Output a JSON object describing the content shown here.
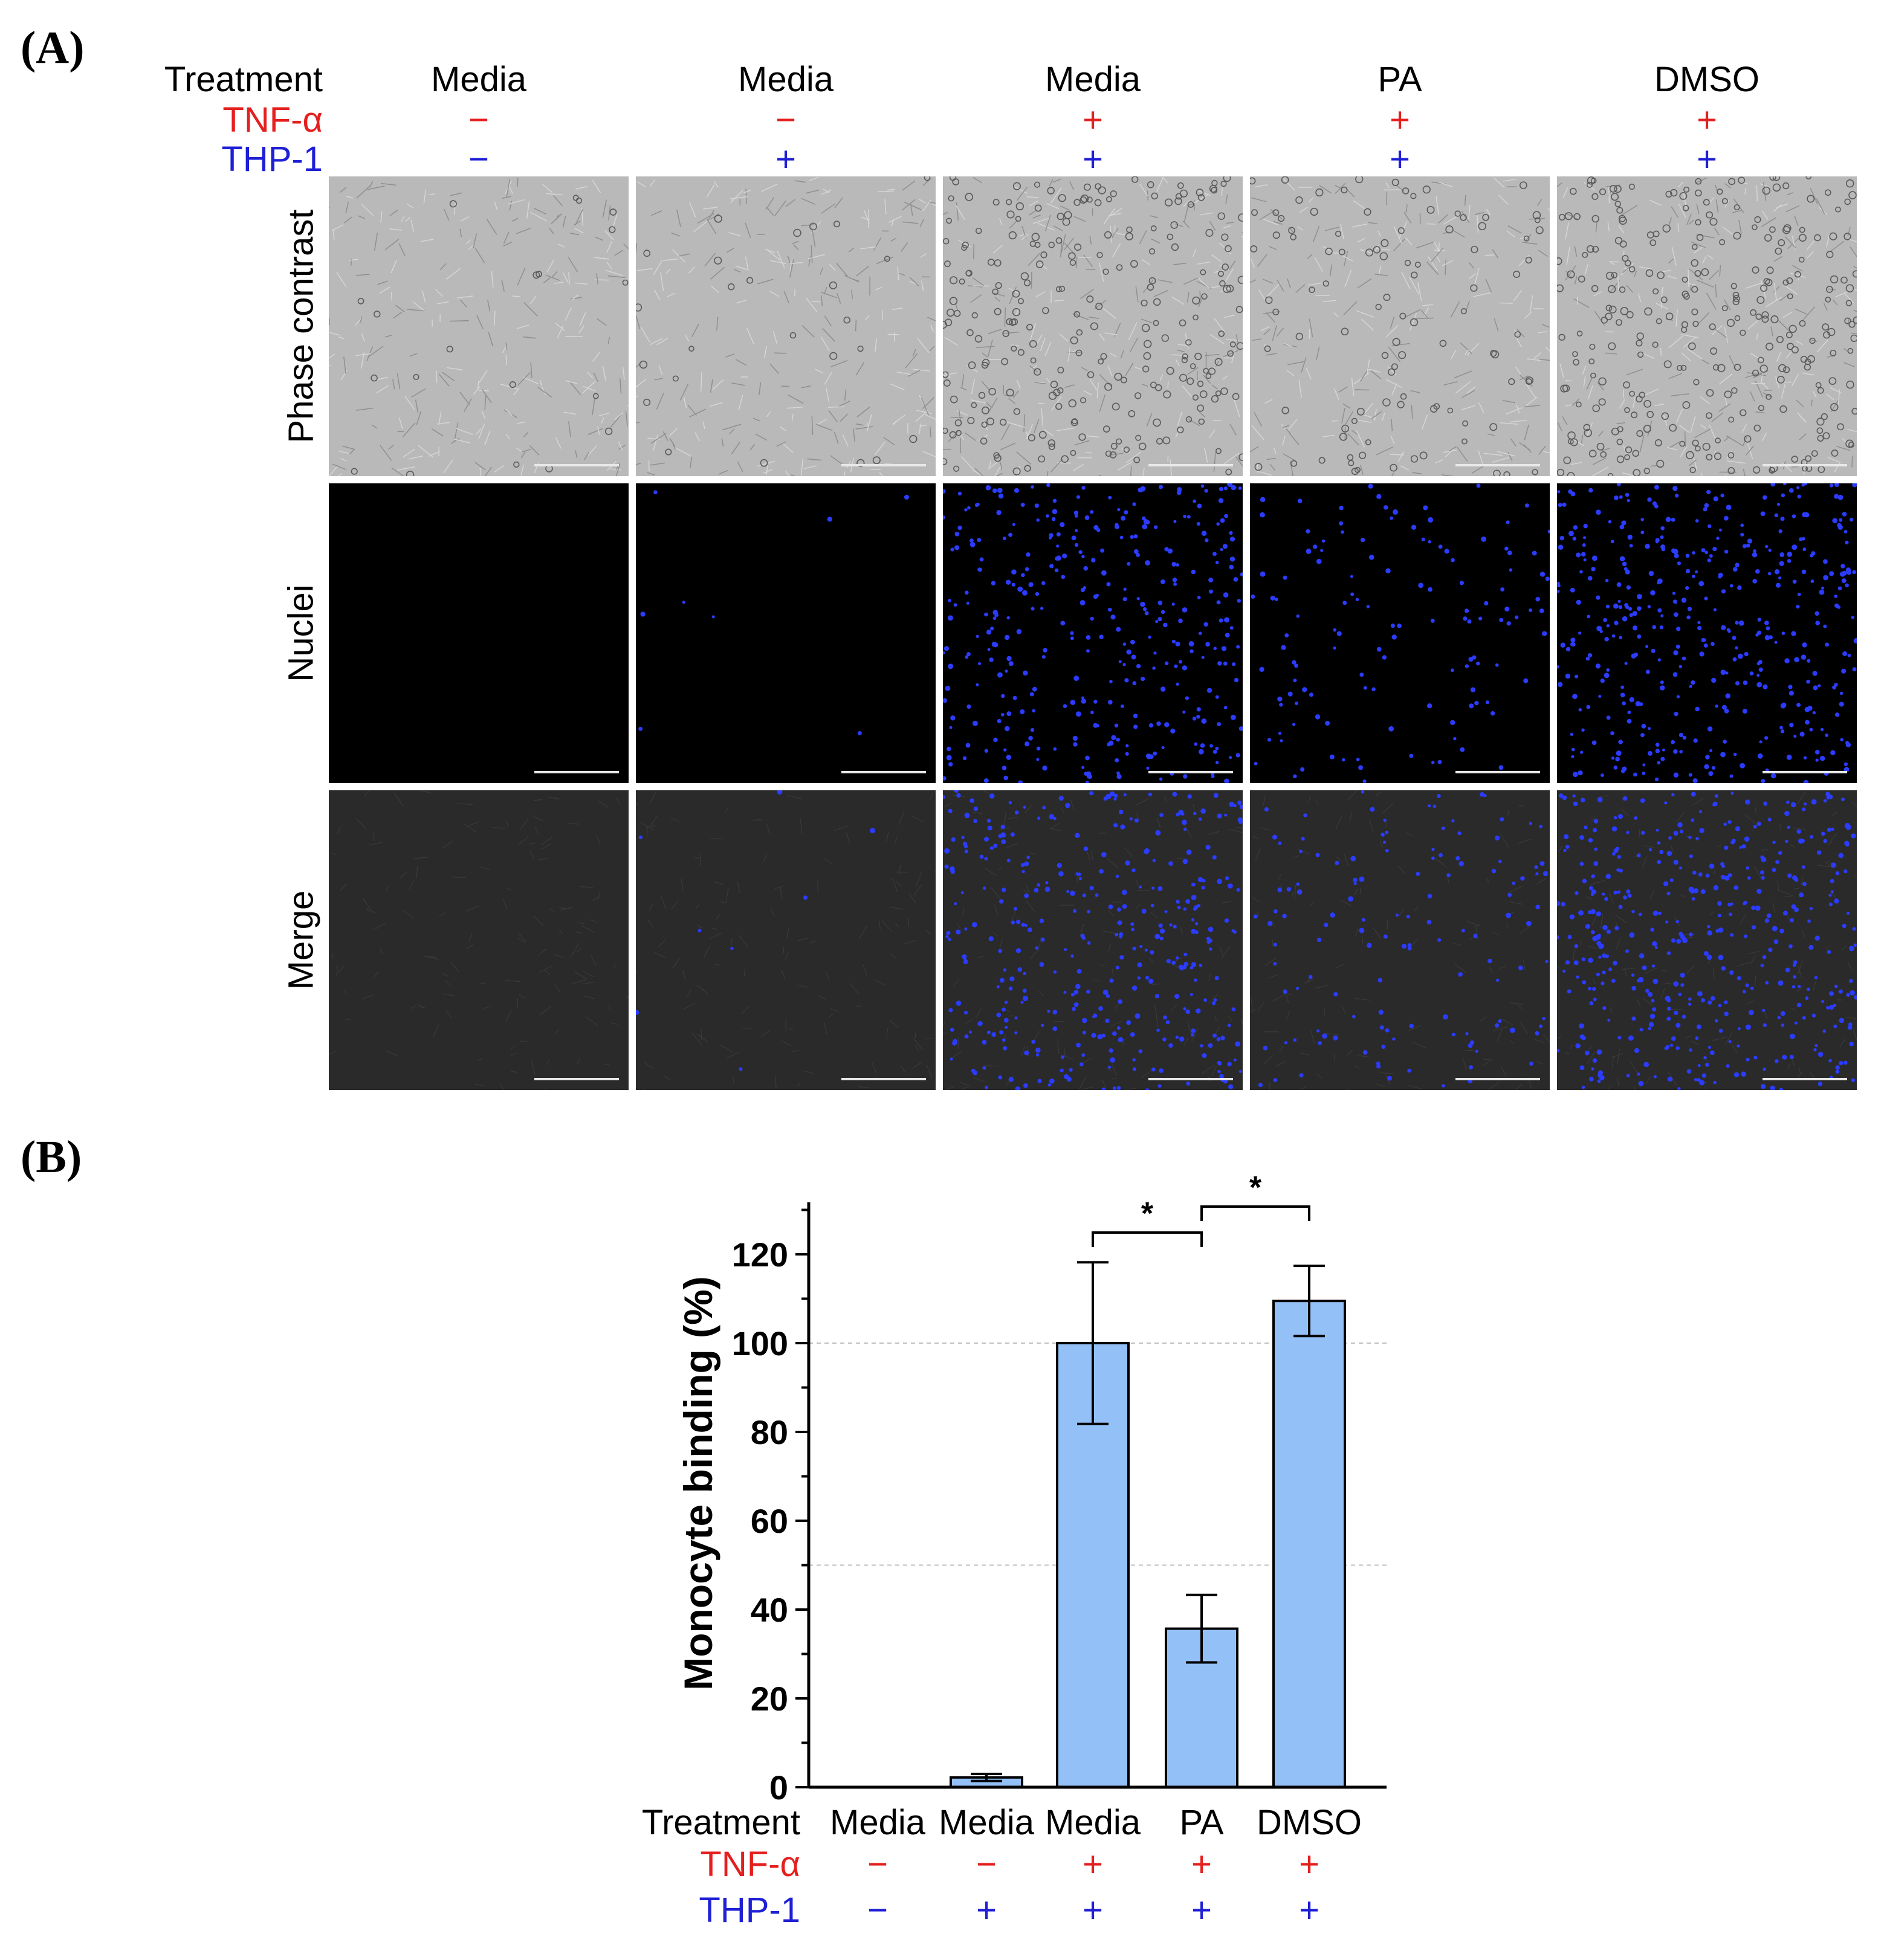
{
  "panel_a": {
    "letter": "(A)",
    "header_labels": {
      "treatment": "Treatment",
      "tnf": "TNF-α",
      "thp": "THP-1"
    },
    "columns": [
      {
        "treatment": "Media",
        "tnf": "−",
        "thp": "−"
      },
      {
        "treatment": "Media",
        "tnf": "−",
        "thp": "+"
      },
      {
        "treatment": "Media",
        "tnf": "+",
        "thp": "+"
      },
      {
        "treatment": "PA",
        "tnf": "+",
        "thp": "+"
      },
      {
        "treatment": "DMSO",
        "tnf": "+",
        "thp": "+"
      }
    ],
    "rows": [
      "Phase contrast",
      "Nuclei",
      "Merge"
    ],
    "nuclei_density": [
      0,
      0.02,
      0.85,
      0.3,
      1.0
    ]
  },
  "panel_b": {
    "letter": "(B)",
    "header_labels": {
      "treatment": "Treatment",
      "tnf": "TNF-α",
      "thp": "THP-1"
    },
    "columns": [
      {
        "treatment": "Media",
        "tnf": "−",
        "thp": "−"
      },
      {
        "treatment": "Media",
        "tnf": "−",
        "thp": "+"
      },
      {
        "treatment": "Media",
        "tnf": "+",
        "thp": "+"
      },
      {
        "treatment": "PA",
        "tnf": "+",
        "thp": "+"
      },
      {
        "treatment": "DMSO",
        "tnf": "+",
        "thp": "+"
      }
    ]
  },
  "colors": {
    "bar_fill": "#93c0f6",
    "tnf_label": "#e4201f",
    "thp_label": "#1f1fd6",
    "nuclei": "#2b3cff"
  },
  "chart_data": {
    "type": "bar",
    "categories": [
      "Media",
      "Media",
      "Media",
      "PA",
      "DMSO"
    ],
    "values": [
      0,
      2.2,
      100,
      35.7,
      109.5
    ],
    "errors": [
      0,
      0.8,
      18.2,
      7.6,
      7.9
    ],
    "ylabel": "Monocyte binding (%)",
    "ylim": [
      0,
      130
    ],
    "yticks": [
      0,
      20,
      40,
      60,
      80,
      100,
      120
    ],
    "reference_lines": [
      100,
      50
    ],
    "significance": [
      {
        "from": 2,
        "to": 3,
        "label": "*"
      },
      {
        "from": 3,
        "to": 4,
        "label": "*"
      }
    ]
  }
}
